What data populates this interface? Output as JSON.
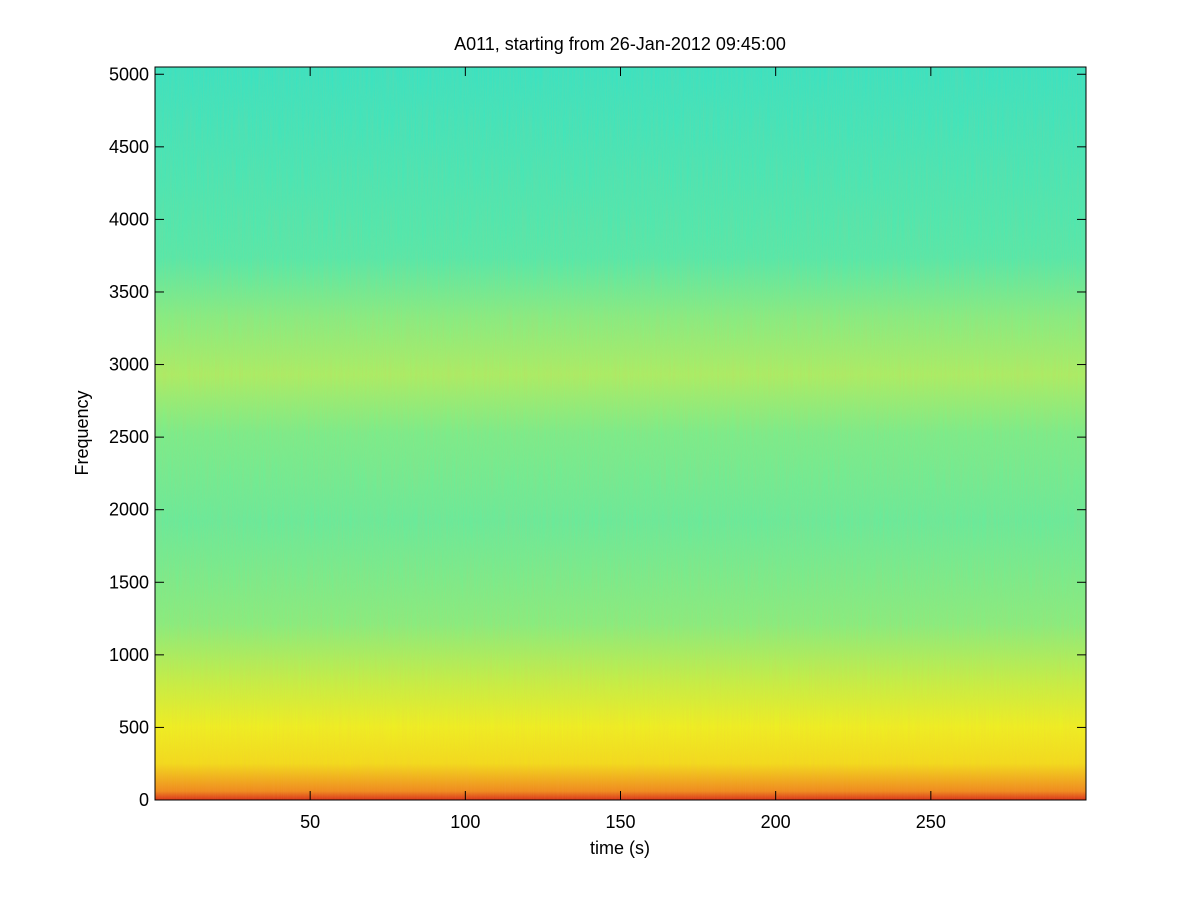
{
  "chart_data": {
    "type": "spectrogram",
    "title": "A011, starting from 26-Jan-2012 09:45:00",
    "x_label": "time (s)",
    "y_label": "Frequency",
    "xlim": [
      0,
      300
    ],
    "xticks": [
      50,
      100,
      150,
      200,
      250
    ],
    "ylim": [
      0,
      5050
    ],
    "yticks": [
      0,
      500,
      1000,
      1500,
      2000,
      2500,
      3000,
      3500,
      4000,
      4500,
      5000
    ],
    "grid": false
  }
}
